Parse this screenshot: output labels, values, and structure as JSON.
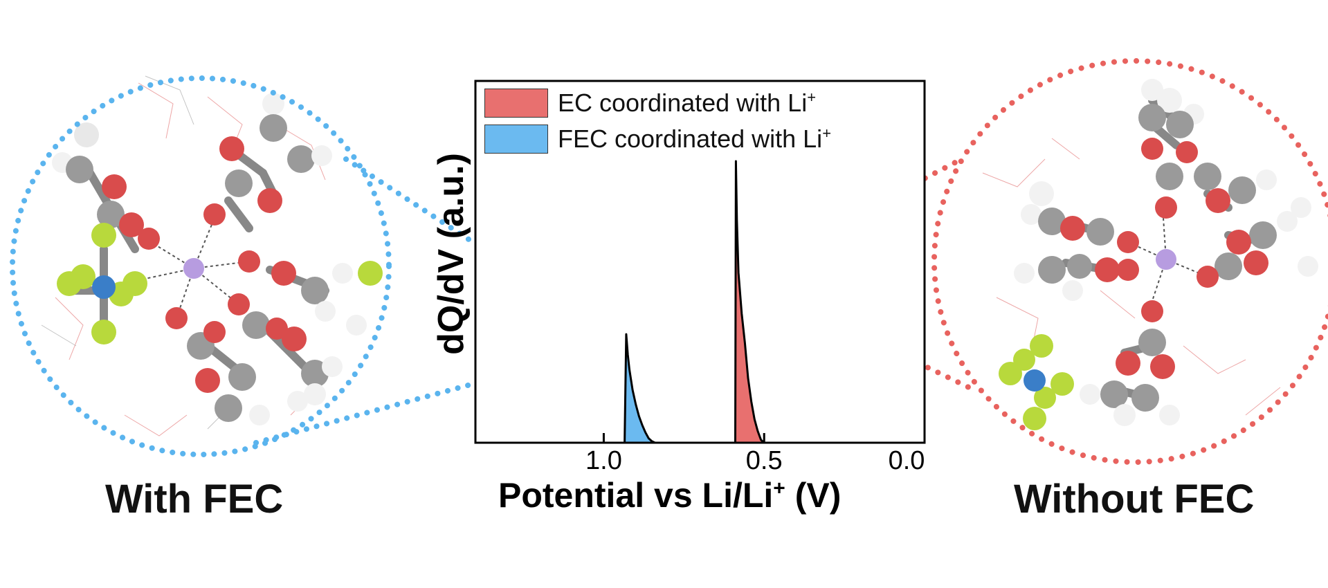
{
  "captions": {
    "left": "With FEC",
    "right": "Without FEC"
  },
  "chart_data": {
    "type": "area",
    "xlabel": "Potential vs Li/Li",
    "xlabel_sup": "+",
    "xlabel_unit": " (V)",
    "ylabel": "dQ/dV (a.u.)",
    "xlim": [
      1.4,
      0.0
    ],
    "x_reversed": true,
    "x_ticks": [
      1.0,
      0.5,
      0.0
    ],
    "x_tick_labels": [
      "1.0",
      "0.5",
      "0.0"
    ],
    "legend_position": "top-left",
    "series": [
      {
        "name": "EC coordinated with Li",
        "name_sup": "+",
        "color": "#e8706f",
        "x": [
          0.59,
          0.588,
          0.585,
          0.58,
          0.57,
          0.56,
          0.55,
          0.54,
          0.53,
          0.52,
          0.51,
          0.5
        ],
        "y": [
          0,
          0.96,
          0.76,
          0.58,
          0.44,
          0.34,
          0.22,
          0.14,
          0.08,
          0.04,
          0.01,
          0
        ]
      },
      {
        "name": "FEC coordinated with Li",
        "name_sup": "+",
        "color": "#6bbaf0",
        "x": [
          0.935,
          0.93,
          0.925,
          0.92,
          0.91,
          0.9,
          0.89,
          0.88,
          0.87,
          0.86,
          0.85,
          0.84
        ],
        "y": [
          0,
          0.37,
          0.3,
          0.25,
          0.18,
          0.13,
          0.09,
          0.06,
          0.035,
          0.015,
          0.005,
          0
        ]
      }
    ]
  },
  "colors": {
    "with_fec_circle": "#5ab4ee",
    "without_fec_circle": "#e8625e"
  },
  "icons": {
    "left_structure": "li-solvation-shell-with-fec-molecule",
    "right_structure": "li-solvation-shell-without-fec-molecule"
  }
}
